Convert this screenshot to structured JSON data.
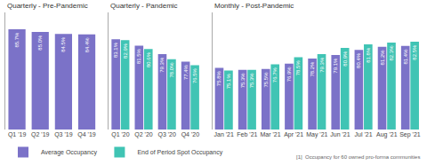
{
  "chart_data": [
    {
      "type": "bar",
      "title": "Quarterly - Pre-Pandemic",
      "categories": [
        "Q1 '19",
        "Q2 '19",
        "Q3 '19",
        "Q4 '19"
      ],
      "series": [
        {
          "name": "Average Occupancy",
          "color": "#7B72C8",
          "values": [
            85.7,
            85.0,
            84.5,
            84.4
          ],
          "value_labels": [
            "85.7%",
            "85.0%",
            "84.5%",
            "84.4%"
          ]
        }
      ],
      "ylim": [
        60,
        90
      ],
      "grid": false,
      "data_labels": true,
      "tick_labels": "x"
    },
    {
      "type": "bar",
      "title": "Quarterly - Pandemic",
      "categories": [
        "Q1 '20",
        "Q2 '20",
        "Q3 '20",
        "Q4 '20"
      ],
      "series": [
        {
          "name": "Average Occupancy",
          "color": "#7B72C8",
          "values": [
            83.1,
            81.5,
            79.3,
            77.4
          ],
          "value_labels": [
            "83.1%",
            "81.5%",
            "79.3%",
            "77.4%"
          ]
        },
        {
          "name": "End of Period Spot Occupancy",
          "color": "#40C4B4",
          "values": [
            82.9,
            80.6,
            78.0,
            76.5
          ],
          "value_labels": [
            "82.9%",
            "80.6%",
            "78.0%",
            "76.5%"
          ]
        }
      ],
      "ylim": [
        60,
        90
      ],
      "grid": false,
      "data_labels": true,
      "tick_labels": "x"
    },
    {
      "type": "bar",
      "title": "Monthly - Post-Pandemic",
      "categories": [
        "Jan '21",
        "Feb '21",
        "Mar '21",
        "Apr '21",
        "May '21",
        "Jun '21",
        "Jul '21",
        "Aug '21",
        "Sep '21"
      ],
      "series": [
        {
          "name": "Average Occupancy",
          "color": "#7B72C8",
          "values": [
            75.8,
            75.3,
            75.5,
            76.9,
            78.2,
            79.1,
            80.4,
            81.2,
            81.4
          ],
          "value_labels": [
            "75.8%",
            "75.3%",
            "75.5%",
            "76.9%",
            "78.2%",
            "79.1%",
            "80.4%",
            "81.2%",
            "81.4%"
          ]
        },
        {
          "name": "End of Period Spot Occupancy",
          "color": "#40C4B4",
          "values": [
            75.1,
            75.3,
            76.7,
            78.5,
            79.3,
            80.9,
            81.8,
            82.3,
            82.5
          ],
          "value_labels": [
            "75.1%",
            "75.3%",
            "76.7%",
            "78.5%",
            "79.3%",
            "80.9%",
            "81.8%",
            "82.3%",
            "82.5%"
          ]
        }
      ],
      "ylim": [
        60,
        90
      ],
      "grid": false,
      "data_labels": true,
      "tick_labels": "x",
      "legend": "bottom",
      "annotations": [
        "[1]  Occupancy for 60 owned pro-forma communities"
      ]
    }
  ]
}
